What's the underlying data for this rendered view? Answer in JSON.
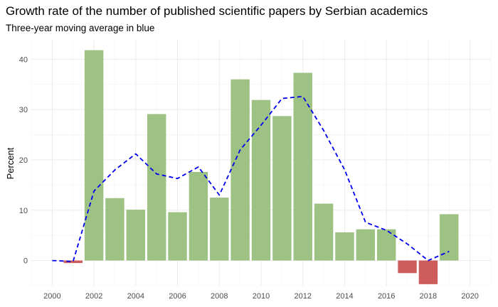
{
  "chart_data": {
    "type": "bar",
    "title": "Growth rate of the number of published scientific papers by Serbian academics",
    "subtitle": "Three-year moving average in blue",
    "xlabel": "",
    "ylabel": "Percent",
    "xlim": [
      1999,
      2021
    ],
    "ylim": [
      -5,
      44
    ],
    "x_ticks": [
      2000,
      2002,
      2004,
      2006,
      2008,
      2010,
      2012,
      2014,
      2016,
      2018,
      2020
    ],
    "y_ticks": [
      0,
      10,
      20,
      30,
      40
    ],
    "grid": true,
    "positive_color": "#9dc284",
    "negative_color": "#cd5c5c",
    "average_color": "#0000ee",
    "bars": {
      "x": [
        2000,
        2001,
        2002,
        2003,
        2004,
        2005,
        2006,
        2007,
        2008,
        2009,
        2010,
        2011,
        2012,
        2013,
        2014,
        2015,
        2016,
        2017,
        2018,
        2019
      ],
      "values": [
        0,
        -0.5,
        41.8,
        12.4,
        10.1,
        29.1,
        9.6,
        17.6,
        12.5,
        36.0,
        31.9,
        28.7,
        37.3,
        11.3,
        5.6,
        6.2,
        6.2,
        -2.5,
        -4.7,
        9.2
      ]
    },
    "moving_average": {
      "x": [
        2000,
        2001,
        2002,
        2003,
        2004,
        2005,
        2006,
        2007,
        2008,
        2009,
        2010,
        2011,
        2012,
        2013,
        2014,
        2015,
        2016,
        2017,
        2018,
        2019
      ],
      "values": [
        0,
        -0.2,
        13.8,
        18.0,
        21.2,
        17.2,
        16.3,
        18.6,
        13.0,
        22.0,
        26.9,
        32.2,
        32.6,
        25.8,
        18.0,
        7.6,
        6.0,
        3.3,
        0,
        1.8
      ]
    }
  }
}
